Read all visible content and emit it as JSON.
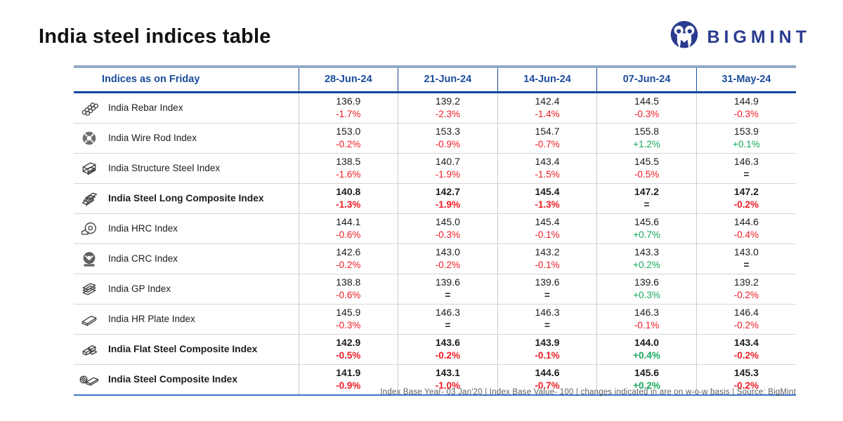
{
  "page": {
    "title": "India steel indices table"
  },
  "logo": {
    "brand": "BIGMINT",
    "icon": "bigmint-logo-icon"
  },
  "table": {
    "header_label": "Indices as on Friday",
    "columns": [
      "28-Jun-24",
      "21-Jun-24",
      "14-Jun-24",
      "07-Jun-24",
      "31-May-24"
    ],
    "rows": [
      {
        "name": "India Rebar Index",
        "icon": "rebar-icon",
        "bold": false,
        "cells": [
          {
            "value": "136.9",
            "change": "-1.7%"
          },
          {
            "value": "139.2",
            "change": "-2.3%"
          },
          {
            "value": "142.4",
            "change": "-1.4%"
          },
          {
            "value": "144.5",
            "change": "-0.3%"
          },
          {
            "value": "144.9",
            "change": "-0.3%"
          }
        ]
      },
      {
        "name": "India Wire Rod Index",
        "icon": "wire-rod-icon",
        "bold": false,
        "cells": [
          {
            "value": "153.0",
            "change": "-0.2%"
          },
          {
            "value": "153.3",
            "change": "-0.9%"
          },
          {
            "value": "154.7",
            "change": "-0.7%"
          },
          {
            "value": "155.8",
            "change": "+1.2%"
          },
          {
            "value": "153.9",
            "change": "+0.1%"
          }
        ]
      },
      {
        "name": "India Structure Steel Index",
        "icon": "structure-steel-icon",
        "bold": false,
        "cells": [
          {
            "value": "138.5",
            "change": "-1.6%"
          },
          {
            "value": "140.7",
            "change": "-1.9%"
          },
          {
            "value": "143.4",
            "change": "-1.5%"
          },
          {
            "value": "145.5",
            "change": "-0.5%"
          },
          {
            "value": "146.3",
            "change": "="
          }
        ]
      },
      {
        "name": "India Steel Long Composite Index",
        "icon": "long-steel-icon",
        "bold": true,
        "cells": [
          {
            "value": "140.8",
            "change": "-1.3%"
          },
          {
            "value": "142.7",
            "change": "-1.9%"
          },
          {
            "value": "145.4",
            "change": "-1.3%"
          },
          {
            "value": "147.2",
            "change": "="
          },
          {
            "value": "147.2",
            "change": "-0.2%"
          }
        ]
      },
      {
        "name": "India HRC Index",
        "icon": "hrc-coil-icon",
        "bold": false,
        "cells": [
          {
            "value": "144.1",
            "change": "-0.6%"
          },
          {
            "value": "145.0",
            "change": "-0.3%"
          },
          {
            "value": "145.4",
            "change": "-0.1%"
          },
          {
            "value": "145.6",
            "change": "+0.7%"
          },
          {
            "value": "144.6",
            "change": "-0.4%"
          }
        ]
      },
      {
        "name": "India CRC Index",
        "icon": "crc-coil-icon",
        "bold": false,
        "cells": [
          {
            "value": "142.6",
            "change": "-0.2%"
          },
          {
            "value": "143.0",
            "change": "-0.2%"
          },
          {
            "value": "143.2",
            "change": "-0.1%"
          },
          {
            "value": "143.3",
            "change": "+0.2%"
          },
          {
            "value": "143.0",
            "change": "="
          }
        ]
      },
      {
        "name": "India GP Index",
        "icon": "gp-sheets-icon",
        "bold": false,
        "cells": [
          {
            "value": "138.8",
            "change": "-0.6%"
          },
          {
            "value": "139.6",
            "change": "="
          },
          {
            "value": "139.6",
            "change": "="
          },
          {
            "value": "139.6",
            "change": "+0.3%"
          },
          {
            "value": "139.2",
            "change": "-0.2%"
          }
        ]
      },
      {
        "name": "India HR Plate Index",
        "icon": "hr-plate-icon",
        "bold": false,
        "cells": [
          {
            "value": "145.9",
            "change": "-0.3%"
          },
          {
            "value": "146.3",
            "change": "="
          },
          {
            "value": "146.3",
            "change": "="
          },
          {
            "value": "146.3",
            "change": "-0.1%"
          },
          {
            "value": "146.4",
            "change": "-0.2%"
          }
        ]
      },
      {
        "name": "India Flat Steel Composite Index",
        "icon": "flat-steel-icon",
        "bold": true,
        "cells": [
          {
            "value": "142.9",
            "change": "-0.5%"
          },
          {
            "value": "143.6",
            "change": "-0.2%"
          },
          {
            "value": "143.9",
            "change": "-0.1%"
          },
          {
            "value": "144.0",
            "change": "+0.4%"
          },
          {
            "value": "143.4",
            "change": "-0.2%"
          }
        ]
      },
      {
        "name": "India Steel Composite Index",
        "icon": "steel-composite-icon",
        "bold": true,
        "cells": [
          {
            "value": "141.9",
            "change": "-0.9%"
          },
          {
            "value": "143.1",
            "change": "-1.0%"
          },
          {
            "value": "144.6",
            "change": "-0.7%"
          },
          {
            "value": "145.6",
            "change": "+0.2%"
          },
          {
            "value": "145.3",
            "change": "-0.2%"
          }
        ]
      }
    ]
  },
  "footer": {
    "note": "Index Base Year- 03 Jan'20 | Index Base Value- 100 | changes indicated in are on w-o-w basis | Source: BigMint"
  },
  "colors": {
    "header_blue": "#1a4c9c",
    "header_rule": "#12479e",
    "top_border": "#93a9c6",
    "bottom_border": "#3b76c4",
    "negative_red": "#ee1c25",
    "positive_green": "#16a85c",
    "brand_navy": "#2a3b8f"
  }
}
